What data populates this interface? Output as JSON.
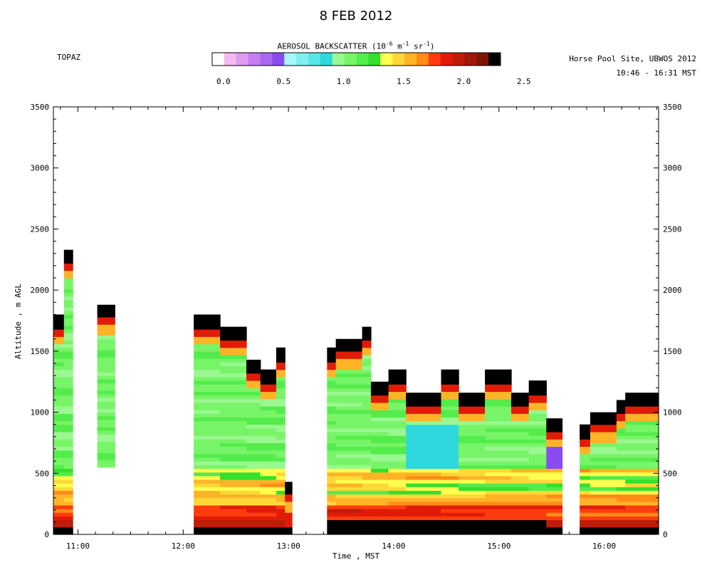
{
  "header": {
    "title": "8 FEB 2012",
    "instrument": "TOPAZ",
    "site": "Horse Pool Site, UBWOS 2012",
    "time_range": "10:46 - 16:31 MST"
  },
  "colorbar": {
    "title_prefix": "AEROSOL BACKSCATTER (10",
    "exp1": "-6",
    "units_mid": " m",
    "exp2": "-1",
    "units_sr": " sr",
    "exp3": "-1",
    "title_suffix": ")",
    "tick_labels": [
      "0.0",
      "0.5",
      "1.0",
      "1.5",
      "2.0",
      "2.5"
    ],
    "colors": [
      "#ffffff",
      "#f5b8f0",
      "#e09af0",
      "#c87ef0",
      "#a868ee",
      "#8a4cf0",
      "#a8f8f8",
      "#7ef0f0",
      "#56e6e6",
      "#2ed8dc",
      "#9af890",
      "#78f468",
      "#54ec4c",
      "#34e02c",
      "#ffff50",
      "#ffd838",
      "#ffb428",
      "#ff8c18",
      "#ff3c10",
      "#e01c08",
      "#c01c08",
      "#a01808",
      "#7e1404",
      "#000000"
    ]
  },
  "chart_data": {
    "type": "heatmap",
    "title": "8 FEB 2012",
    "xlabel": "Time , MST",
    "ylabel": "Altitude , m AGL",
    "xlim": [
      "10:46",
      "16:31"
    ],
    "ylim": [
      0,
      3500
    ],
    "x_ticks": [
      "11:00",
      "12:00",
      "13:00",
      "14:00",
      "15:00",
      "16:00"
    ],
    "y_ticks": [
      0,
      500,
      1000,
      1500,
      2000,
      2500,
      3000,
      3500
    ],
    "colorscale_range": [
      0.0,
      2.5
    ],
    "colorbar_units": "10^-6 m^-1 sr^-1",
    "segments": [
      {
        "start": "10:46",
        "end": "10:52",
        "top_m": 1800,
        "profile": "a"
      },
      {
        "start": "10:52",
        "end": "10:57",
        "top_m": 2330,
        "profile": "a"
      },
      {
        "start": "11:11",
        "end": "11:21",
        "top_m": 1880,
        "profile": "b",
        "bottom_m": 550
      },
      {
        "start": "12:06",
        "end": "12:21",
        "top_m": 1800,
        "profile": "c"
      },
      {
        "start": "12:21",
        "end": "12:36",
        "top_m": 1700,
        "profile": "c"
      },
      {
        "start": "12:36",
        "end": "12:44",
        "top_m": 1430,
        "profile": "c"
      },
      {
        "start": "12:44",
        "end": "12:53",
        "top_m": 1350,
        "profile": "c"
      },
      {
        "start": "12:53",
        "end": "12:58",
        "top_m": 1530,
        "profile": "c"
      },
      {
        "start": "12:58",
        "end": "13:02",
        "top_m": 430,
        "profile": "d"
      },
      {
        "start": "13:22",
        "end": "13:27",
        "top_m": 1530,
        "profile": "e"
      },
      {
        "start": "13:27",
        "end": "13:42",
        "top_m": 1600,
        "profile": "e"
      },
      {
        "start": "13:42",
        "end": "13:47",
        "top_m": 1700,
        "profile": "e"
      },
      {
        "start": "13:47",
        "end": "13:57",
        "top_m": 1250,
        "profile": "e"
      },
      {
        "start": "13:57",
        "end": "14:07",
        "top_m": 1350,
        "profile": "e"
      },
      {
        "start": "14:07",
        "end": "14:27",
        "top_m": 1160,
        "profile": "e"
      },
      {
        "start": "14:27",
        "end": "14:37",
        "top_m": 1350,
        "profile": "e"
      },
      {
        "start": "14:37",
        "end": "14:52",
        "top_m": 1160,
        "profile": "e"
      },
      {
        "start": "14:52",
        "end": "15:07",
        "top_m": 1350,
        "profile": "e"
      },
      {
        "start": "15:07",
        "end": "15:17",
        "top_m": 1160,
        "profile": "e"
      },
      {
        "start": "15:17",
        "end": "15:27",
        "top_m": 1260,
        "profile": "e"
      },
      {
        "start": "15:27",
        "end": "15:36",
        "top_m": 950,
        "profile": "f"
      },
      {
        "start": "15:46",
        "end": "15:52",
        "top_m": 900,
        "profile": "g"
      },
      {
        "start": "15:52",
        "end": "16:07",
        "top_m": 1000,
        "profile": "g"
      },
      {
        "start": "16:07",
        "end": "16:12",
        "top_m": 1100,
        "profile": "g"
      },
      {
        "start": "16:12",
        "end": "16:31",
        "top_m": 1160,
        "profile": "g"
      }
    ]
  }
}
